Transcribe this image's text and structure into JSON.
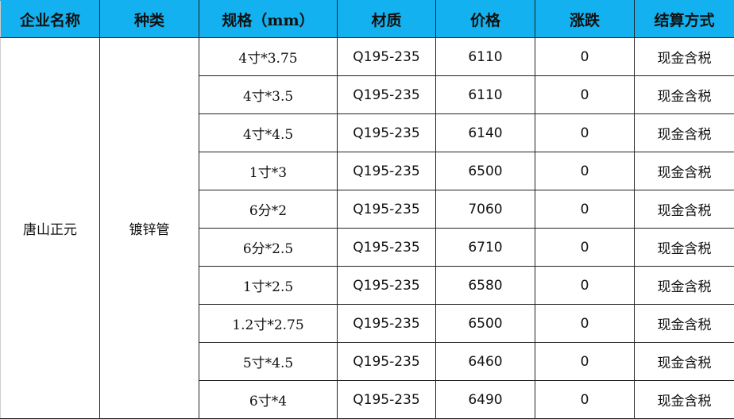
{
  "headers": [
    "企业名称",
    "种类",
    "规格（mm）",
    "材质",
    "价格",
    "涨跌",
    "结算方式"
  ],
  "company": "唐山正元",
  "category": "镀锌管",
  "rows": [
    {
      "spec": "4寸*3.75",
      "material": "Q195-235",
      "price": "6110",
      "change": "0",
      "settlement": "现金含税"
    },
    {
      "spec": "4寸*3.5",
      "material": "Q195-235",
      "price": "6110",
      "change": "0",
      "settlement": "现金含税"
    },
    {
      "spec": "4寸*4.5",
      "material": "Q195-235",
      "price": "6140",
      "change": "0",
      "settlement": "现金含税"
    },
    {
      "spec": "1寸*3",
      "material": "Q195-235",
      "price": "6500",
      "change": "0",
      "settlement": "现金含税"
    },
    {
      "spec": "6分*2",
      "material": "Q195-235",
      "price": "7060",
      "change": "0",
      "settlement": "现金含税"
    },
    {
      "spec": "6分*2.5",
      "material": "Q195-235",
      "price": "6710",
      "change": "0",
      "settlement": "现金含税"
    },
    {
      "spec": "1寸*2.5",
      "material": "Q195-235",
      "price": "6580",
      "change": "0",
      "settlement": "现金含税"
    },
    {
      "spec": "1.2寸*2.75",
      "material": "Q195-235",
      "price": "6500",
      "change": "0",
      "settlement": "现金含税"
    },
    {
      "spec": "5寸*4.5",
      "material": "Q195-235",
      "price": "6460",
      "change": "0",
      "settlement": "现金含税"
    },
    {
      "spec": "6寸*4",
      "material": "Q195-235",
      "price": "6490",
      "change": "0",
      "settlement": "现金含税"
    }
  ],
  "colors": {
    "header_bg": "#13b1ef"
  }
}
